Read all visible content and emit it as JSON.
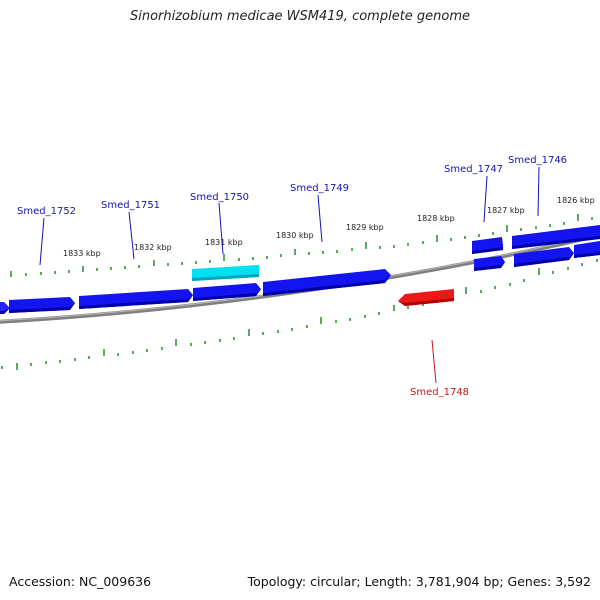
{
  "title": "Sinorhizobium medicae WSM419, complete genome",
  "footer": {
    "accession": "Accession: NC_009636",
    "summary": "Topology: circular; Length: 3,781,904 bp; Genes: 3,592"
  },
  "colors": {
    "gene_forward": "#1010e0",
    "gene_selected": "#00d8e8",
    "gene_reverse": "#e01010",
    "backbone": "#808080",
    "tick": "#2a8a2a",
    "label_forward": "#1414b4",
    "label_reverse": "#c81414"
  },
  "ticks": {
    "upper_labels": [
      "1833 kbp",
      "1832 kbp",
      "1831 kbp",
      "1830 kbp",
      "1829 kbp",
      "1828 kbp",
      "1827 kbp",
      "1826 kbp"
    ]
  },
  "genes": {
    "labels": {
      "g1752": "Smed_1752",
      "g1751": "Smed_1751",
      "g1750": "Smed_1750",
      "g1749": "Smed_1749",
      "g1747": "Smed_1747",
      "g1746": "Smed_1746",
      "g1748": "Smed_1748"
    }
  }
}
